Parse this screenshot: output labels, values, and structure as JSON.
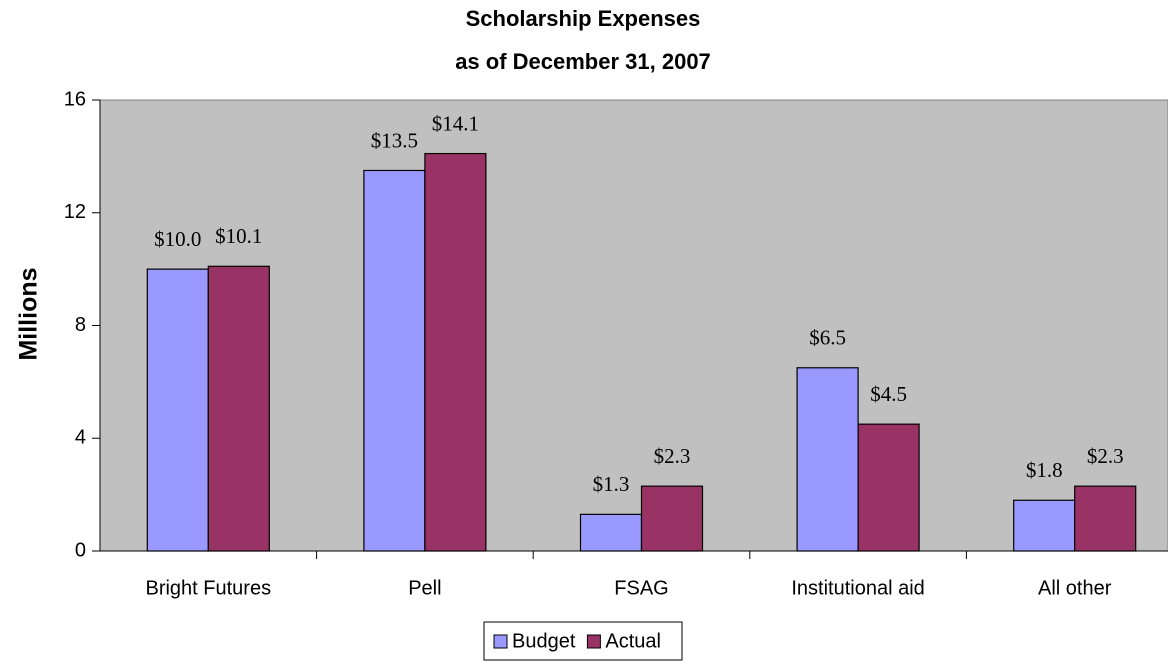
{
  "chart_data": {
    "type": "bar",
    "title": "Scholarship Expenses",
    "subtitle": "as of December 31, 2007",
    "y_axis_label": "Millions",
    "categories": [
      "Bright Futures",
      "Pell",
      "FSAG",
      "Institutional aid",
      "All other"
    ],
    "series": [
      {
        "name": "Budget",
        "color": "#9999ff",
        "values": [
          10.0,
          13.5,
          1.3,
          6.5,
          1.8
        ],
        "value_labels": [
          "$10.0",
          "$13.5",
          "$1.3",
          "$6.5",
          "$1.8"
        ]
      },
      {
        "name": "Actual",
        "color": "#993366",
        "values": [
          10.1,
          14.1,
          2.3,
          4.5,
          2.3
        ],
        "value_labels": [
          "$10.1",
          "$14.1",
          "$2.3",
          "$4.5",
          "$2.3"
        ]
      }
    ],
    "ylim": [
      0,
      16
    ],
    "yticks": [
      0,
      4,
      8,
      12,
      16
    ],
    "plot_background": "#c0c0c0",
    "legend": "bottom"
  }
}
